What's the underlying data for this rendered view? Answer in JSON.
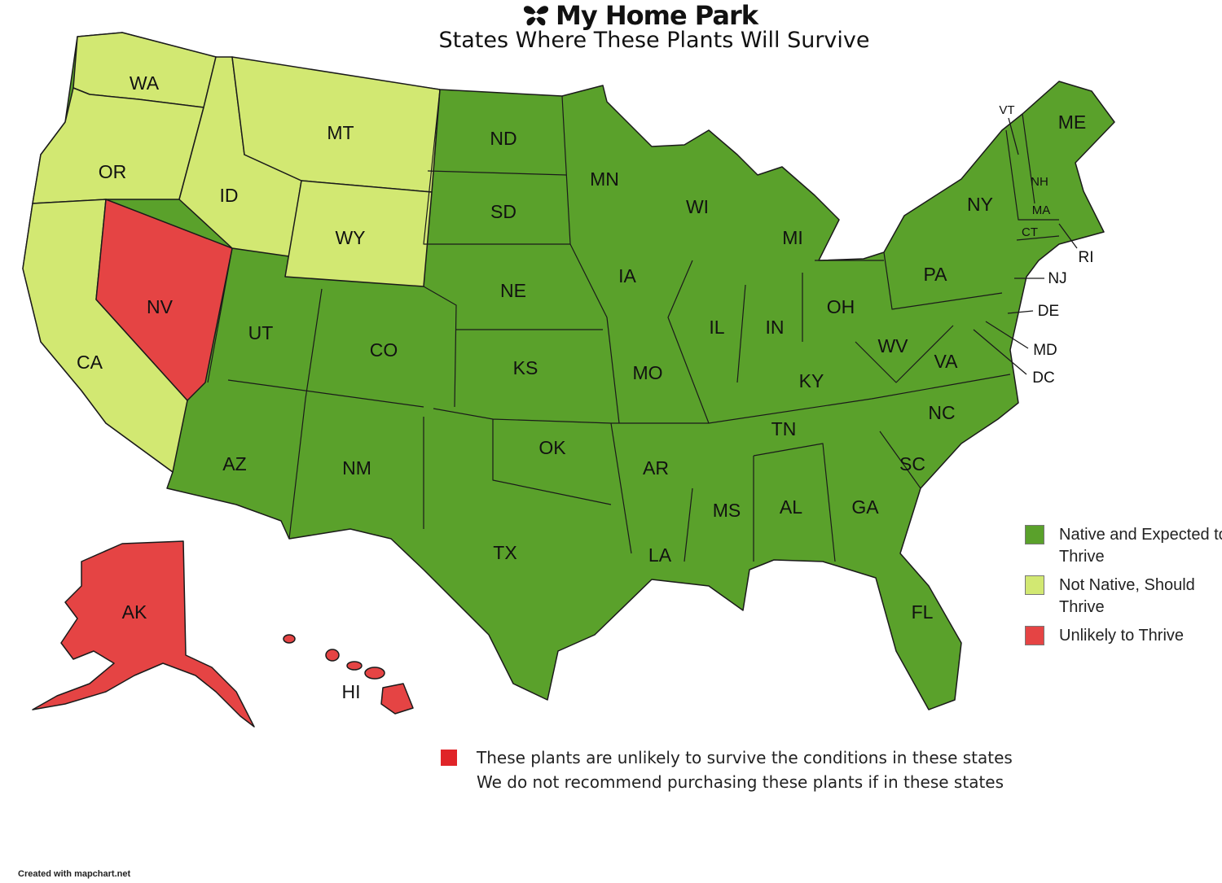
{
  "header": {
    "brand": "My Home Park",
    "subtitle": "States Where These Plants Will Survive",
    "logo_icon": "butterfly-flower-icon"
  },
  "colors": {
    "native": "#5aa12b",
    "not_native": "#d2e872",
    "unlikely": "#e54444",
    "note_square": "#e02428",
    "border": "#1a1a1a"
  },
  "legend": [
    {
      "label": "Native and Expected to Thrive",
      "color": "#5aa12b"
    },
    {
      "label": "Not Native, Should Thrive",
      "color": "#d2e872"
    },
    {
      "label": "Unlikely to Thrive",
      "color": "#e54444"
    }
  ],
  "states": {
    "native": [
      "ND",
      "MN",
      "SD",
      "WI",
      "MI",
      "NE",
      "IA",
      "UT",
      "CO",
      "IL",
      "IN",
      "OH",
      "KS",
      "MO",
      "KY",
      "WV",
      "VA",
      "AZ",
      "NM",
      "OK",
      "AR",
      "TN",
      "NC",
      "SC",
      "MS",
      "AL",
      "GA",
      "TX",
      "LA",
      "FL",
      "PA",
      "NY",
      "VT",
      "NH",
      "ME",
      "MA",
      "CT",
      "RI",
      "NJ",
      "DE",
      "MD",
      "DC"
    ],
    "not_native": [
      "WA",
      "OR",
      "CA",
      "ID",
      "MT",
      "WY"
    ],
    "unlikely": [
      "NV",
      "AK",
      "HI"
    ]
  },
  "labels": {
    "WA": "WA",
    "OR": "OR",
    "CA": "CA",
    "NV": "NV",
    "ID": "ID",
    "MT": "MT",
    "WY": "WY",
    "UT": "UT",
    "AZ": "AZ",
    "CO": "CO",
    "NM": "NM",
    "ND": "ND",
    "SD": "SD",
    "NE": "NE",
    "KS": "KS",
    "OK": "OK",
    "TX": "TX",
    "MN": "MN",
    "IA": "IA",
    "MO": "MO",
    "AR": "AR",
    "LA": "LA",
    "WI": "WI",
    "IL": "IL",
    "MS": "MS",
    "MI": "MI",
    "IN": "IN",
    "KY": "KY",
    "TN": "TN",
    "AL": "AL",
    "OH": "OH",
    "WV": "WV",
    "VA": "VA",
    "NC": "NC",
    "SC": "SC",
    "GA": "GA",
    "FL": "FL",
    "PA": "PA",
    "NY": "NY",
    "VT": "VT",
    "NH": "NH",
    "ME": "ME",
    "MA": "MA",
    "CT": "CT",
    "RI": "RI",
    "NJ": "NJ",
    "DE": "DE",
    "MD": "MD",
    "DC": "DC",
    "AK": "AK",
    "HI": "HI"
  },
  "note": {
    "line1": "These plants are unlikely to survive the conditions in these states",
    "line2": "We do not recommend purchasing these plants if in these states"
  },
  "credit": "Created with mapchart.net"
}
